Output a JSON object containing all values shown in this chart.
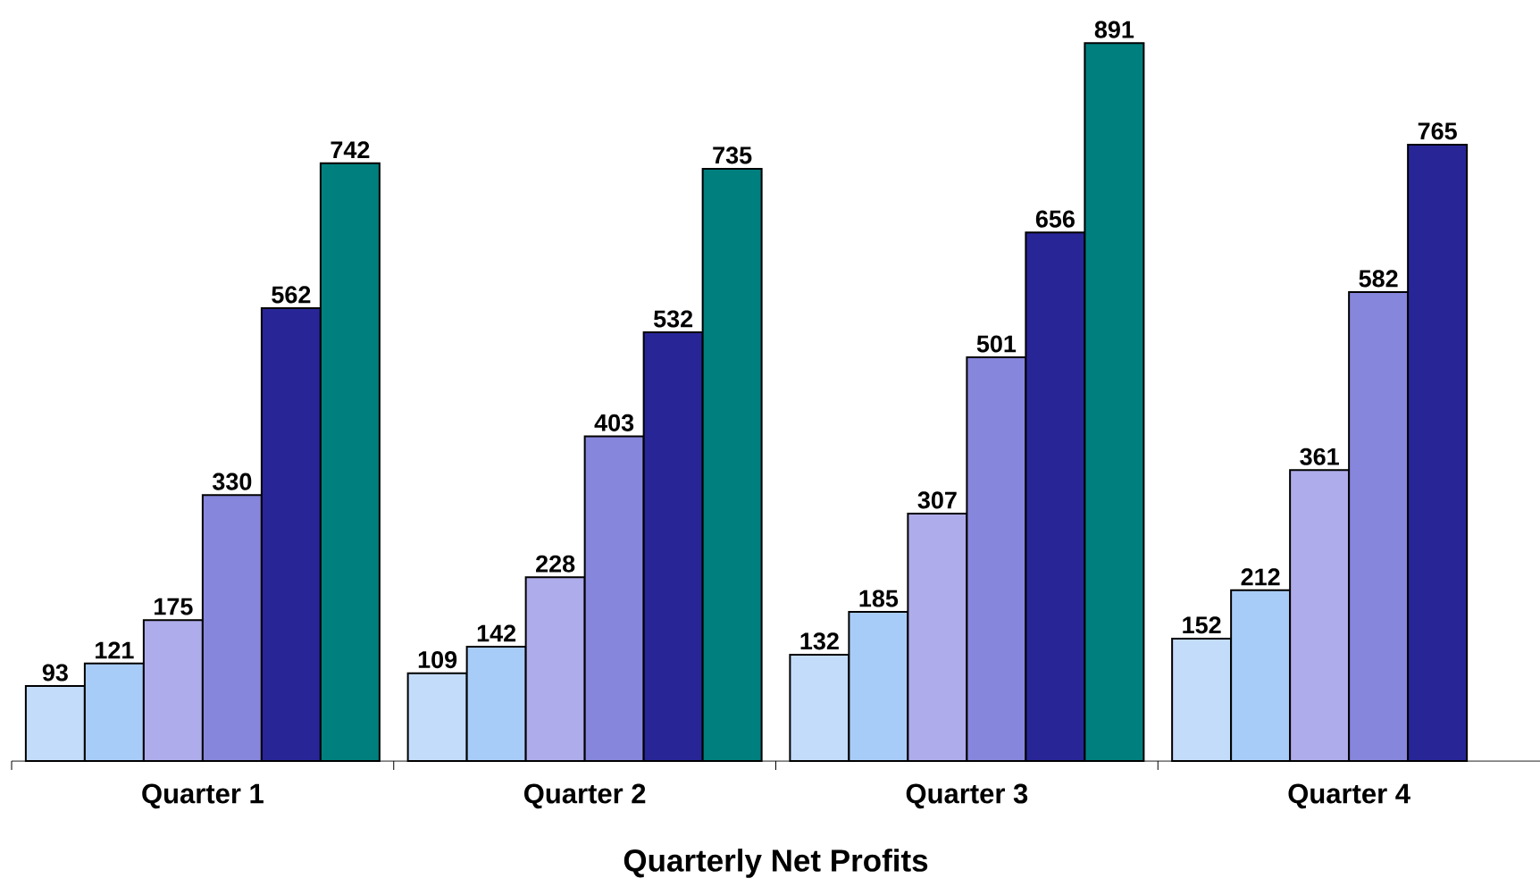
{
  "chart_data": {
    "type": "bar",
    "xlabel": "Quarterly Net Profits",
    "categories": [
      "Quarter 1",
      "Quarter 2",
      "Quarter 3",
      "Quarter 4"
    ],
    "series": [
      {
        "color": "#c3dcfa",
        "values": [
          93,
          109,
          132,
          152
        ]
      },
      {
        "color": "#a8ccf8",
        "values": [
          121,
          142,
          185,
          212
        ]
      },
      {
        "color": "#afaceb",
        "values": [
          175,
          228,
          307,
          361
        ]
      },
      {
        "color": "#8786dd",
        "values": [
          330,
          403,
          501,
          582
        ]
      },
      {
        "color": "#282697",
        "values": [
          562,
          532,
          656,
          765
        ]
      },
      {
        "color": "#007f7f",
        "values": [
          742,
          735,
          891,
          null
        ]
      }
    ],
    "data_labels": true
  }
}
